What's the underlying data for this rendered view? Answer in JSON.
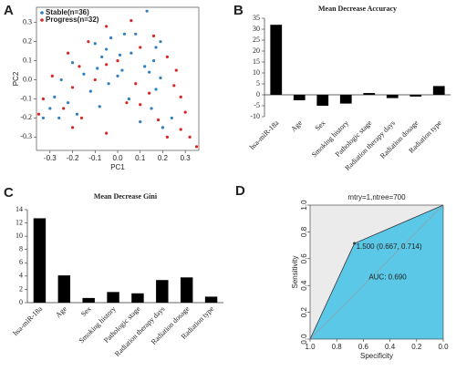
{
  "chart_data": [
    {
      "type": "scatter",
      "label": "A",
      "xlabel": "PC1",
      "ylabel": "PC2",
      "legend": "upper left",
      "xlim": [
        -0.36,
        0.36
      ],
      "ylim": [
        -0.37,
        0.38
      ],
      "xticks": [
        -0.3,
        -0.2,
        -0.1,
        {
          "value": 0,
          "label": "0.0"
        },
        0.1,
        0.2,
        0.3
      ],
      "yticks": [
        -0.3,
        -0.2,
        -0.1,
        {
          "value": 0,
          "label": "0.0"
        },
        0.1,
        0.2,
        0.3
      ],
      "series": [
        {
          "name": "Stable(n=36)",
          "color": "#2f7fc1",
          "x": [
            0.13,
            0.03,
            -0.03,
            0.08,
            0.19,
            -0.1,
            0.17,
            -0.05,
            0.01,
            -0.07,
            0.16,
            -0.2,
            0.12,
            -0.09,
            0.02,
            0.14,
            -0.15,
            0.19,
            -0.25,
            0.0,
            -0.04,
            0.17,
            -0.12,
            -0.28,
            -0.22,
            0.05,
            -0.3,
            0.15,
            -0.08,
            0.24,
            -0.26,
            0.1,
            -0.33,
            0.2,
            -0.18,
            0.06
          ],
          "values": [
            0.36,
            0.24,
            0.22,
            0.24,
            0.2,
            0.19,
            0.17,
            0.16,
            0.13,
            0.12,
            0.1,
            0.09,
            0.07,
            0.06,
            0.05,
            0.04,
            0.03,
            0.01,
            0.0,
            0.02,
            -0.02,
            -0.05,
            -0.06,
            -0.09,
            -0.12,
            -0.1,
            -0.15,
            -0.15,
            -0.14,
            -0.2,
            -0.2,
            -0.22,
            -0.2,
            -0.25,
            -0.18,
            0.14
          ]
        },
        {
          "name": "Progress(n=32)",
          "color": "#d62728",
          "x": [
            0.06,
            -0.05,
            0.16,
            -0.13,
            0.1,
            -0.22,
            0.22,
            -0.17,
            0.26,
            -0.05,
            0.0,
            -0.29,
            0.08,
            -0.1,
            0.25,
            -0.2,
            0.14,
            -0.33,
            0.28,
            0.04,
            -0.24,
            0.1,
            0.3,
            -0.16,
            0.18,
            -0.35,
            0.28,
            -0.05,
            0.32,
            -0.2,
            0.22,
            0.35
          ],
          "values": [
            0.31,
            0.28,
            0.23,
            0.2,
            0.17,
            0.14,
            0.12,
            0.07,
            0.05,
            0.08,
            0.1,
            0.02,
            -0.02,
            0.0,
            -0.03,
            -0.04,
            -0.07,
            -0.1,
            -0.09,
            -0.12,
            -0.15,
            -0.13,
            -0.17,
            -0.2,
            -0.21,
            -0.18,
            -0.26,
            -0.28,
            -0.3,
            -0.25,
            -0.3,
            -0.35
          ]
        }
      ]
    },
    {
      "type": "bar",
      "label": "B",
      "title": "Mean Decrease Accuracy",
      "color": "#000000",
      "categories": [
        "hsa-miR-18a",
        "Age",
        "Sex",
        "Smoking history",
        "Pathologic stage",
        "Radiation therapy days",
        "Radiation dosage",
        "Radiation type"
      ],
      "values": [
        32,
        -2.5,
        -5,
        -4,
        0.8,
        -1.5,
        -0.8,
        4
      ],
      "ylim": [
        -10,
        35
      ],
      "yticks": [
        -10,
        -5,
        0,
        5,
        10,
        15,
        20,
        25,
        30,
        35
      ]
    },
    {
      "type": "bar",
      "label": "C",
      "title": "Mean Decrease Gini",
      "color": "#000000",
      "categories": [
        "hsa-miR-18a",
        "Age",
        "Sex",
        "Smoking history",
        "Pathologic stage",
        "Radiation therapy days",
        "Radiation dosage",
        "Radiation type"
      ],
      "values": [
        12.7,
        4.1,
        0.7,
        1.6,
        1.4,
        3.4,
        3.8,
        0.9
      ],
      "ylim": [
        0,
        14
      ],
      "yticks": [
        0,
        2,
        4,
        6,
        8,
        10,
        12,
        14
      ]
    },
    {
      "type": "area",
      "label": "D",
      "title": "mtry=1,ntree=700",
      "xlabel": "Specificity",
      "ylabel": "Sensitivity",
      "annotations": [
        "1.500 (0.667, 0.714)",
        "AUC: 0.690"
      ],
      "color": "#5bc8e8",
      "background": "#ebebeb",
      "xlim": [
        1,
        0
      ],
      "ylim": [
        0,
        1
      ],
      "xticks": [
        {
          "value": 1,
          "label": "1.0"
        },
        0.8,
        0.6,
        0.4,
        0.2,
        {
          "value": 0,
          "label": "0.0"
        }
      ],
      "yticks": [
        {
          "value": 0,
          "label": "0.0"
        },
        0.2,
        0.4,
        0.6,
        0.8,
        {
          "value": 1,
          "label": "1.0"
        }
      ],
      "x": [
        1,
        0.667,
        0
      ],
      "values": [
        0,
        0.714,
        1
      ]
    }
  ]
}
